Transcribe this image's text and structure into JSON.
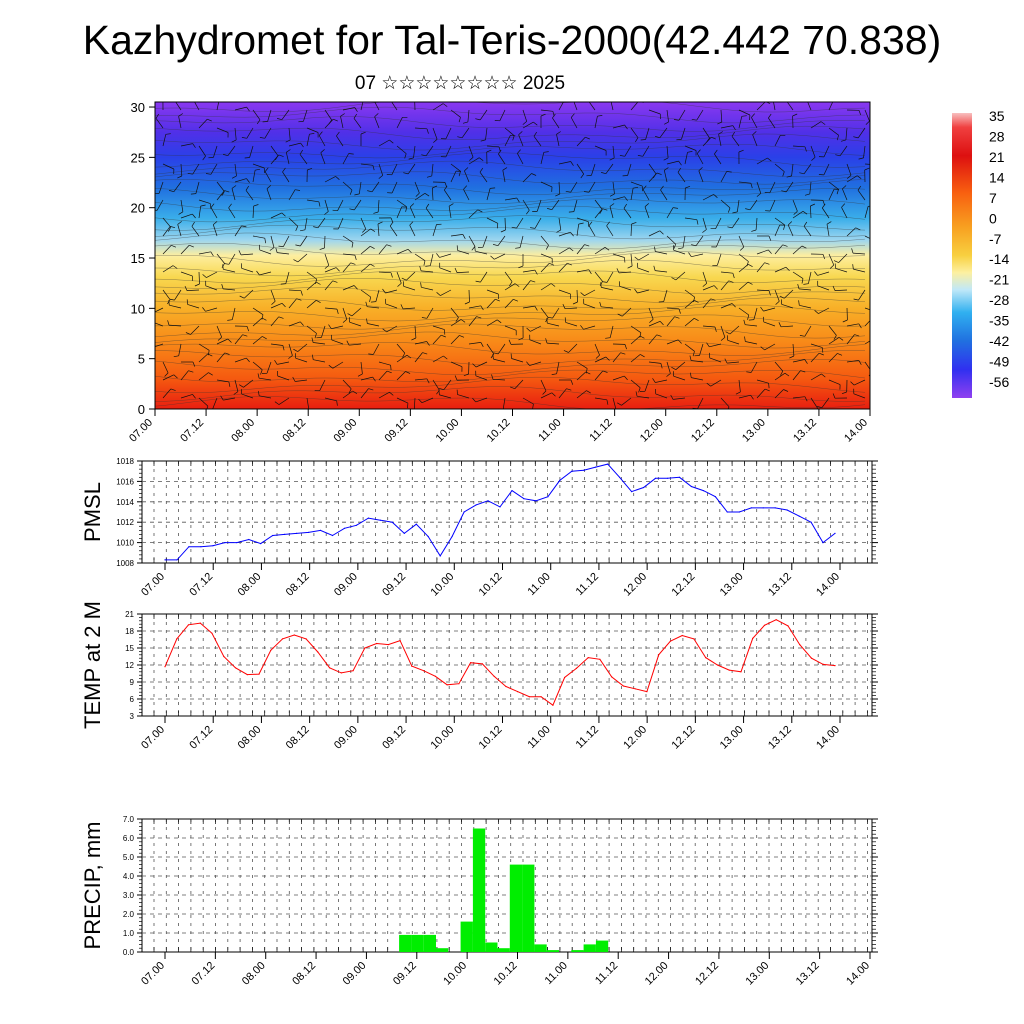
{
  "title": "Kazhydromet for Tal-Teris-2000(42.442 70.838)",
  "subtitle": "07 ☆☆☆☆☆☆☆☆ 2025",
  "colors": {
    "pmsl_line": "#0000ff",
    "temp_line": "#ff0000",
    "precip_bar": "#00ee00",
    "grid": "#555555"
  },
  "chart_data": [
    {
      "type": "heatmap",
      "title": "",
      "xlabel": "",
      "ylabel": "",
      "x_tick_labels": [
        "07.00",
        "07.12",
        "08.00",
        "08.12",
        "09.00",
        "09.12",
        "10.00",
        "10.12",
        "11.00",
        "11.12",
        "12.00",
        "12.12",
        "13.00",
        "13.12",
        "14.00"
      ],
      "y_ticks": [
        0,
        5,
        10,
        15,
        20,
        25,
        30
      ],
      "ylim": [
        0,
        30.5
      ],
      "colorbar_labels": [
        "35",
        "28",
        "21",
        "14",
        "7",
        "0",
        "-7",
        "-14",
        "-21",
        "-28",
        "-35",
        "-42",
        "-49",
        "-56"
      ],
      "value_range": [
        -60,
        38
      ],
      "overlay": "wind barbs"
    },
    {
      "type": "line",
      "ylabel": "PMSL",
      "x_tick_labels": [
        "07.00",
        "07.12",
        "08.00",
        "08.12",
        "09.00",
        "09.12",
        "10.00",
        "10.12",
        "11.00",
        "11.12",
        "12.00",
        "12.12",
        "13.00",
        "13.12",
        "14.00"
      ],
      "y_ticks": [
        1008,
        1010,
        1012,
        1014,
        1016,
        1018
      ],
      "ylim": [
        1008,
        1018
      ],
      "grid": true,
      "values": [
        1008.3,
        1008.3,
        1009.6,
        1009.6,
        1009.7,
        1010.0,
        1010.0,
        1010.3,
        1009.9,
        1010.7,
        1010.8,
        1010.9,
        1011.0,
        1011.2,
        1010.7,
        1011.4,
        1011.7,
        1012.4,
        1012.2,
        1012.0,
        1010.9,
        1011.8,
        1010.6,
        1008.7,
        1010.6,
        1013.0,
        1013.7,
        1014.1,
        1013.5,
        1015.1,
        1014.3,
        1014.1,
        1014.5,
        1016.1,
        1017.0,
        1017.1,
        1017.4,
        1017.7,
        1016.4,
        1015.0,
        1015.4,
        1016.3,
        1016.3,
        1016.4,
        1015.5,
        1015.1,
        1014.5,
        1013.0,
        1013.0,
        1013.4,
        1013.4,
        1013.4,
        1013.2,
        1012.6,
        1012.0,
        1010.0,
        1010.9
      ]
    },
    {
      "type": "line",
      "ylabel": "TEMP at 2 M",
      "x_tick_labels": [
        "07.00",
        "07.12",
        "08.00",
        "08.12",
        "09.00",
        "09.12",
        "10.00",
        "10.12",
        "11.00",
        "11.12",
        "12.00",
        "12.12",
        "13.00",
        "13.12",
        "14.00"
      ],
      "y_ticks": [
        3,
        6,
        9,
        12,
        15,
        18,
        21
      ],
      "ylim": [
        3,
        21
      ],
      "grid": true,
      "values": [
        11.7,
        16.6,
        19.1,
        19.4,
        17.6,
        13.5,
        11.5,
        10.3,
        10.4,
        14.6,
        16.6,
        17.3,
        16.6,
        14.3,
        11.5,
        10.6,
        11.0,
        15.0,
        15.8,
        15.6,
        16.3,
        11.8,
        11.0,
        10.0,
        8.5,
        8.7,
        12.4,
        12.2,
        10.0,
        8.2,
        7.3,
        6.4,
        6.4,
        4.9,
        9.8,
        11.4,
        13.3,
        13.0,
        9.9,
        8.3,
        7.8,
        7.3,
        13.8,
        16.2,
        17.2,
        16.6,
        13.3,
        12.0,
        11.1,
        10.8,
        16.7,
        19.0,
        20.0,
        18.9,
        15.6,
        13.2,
        12.1,
        11.9
      ]
    },
    {
      "type": "bar",
      "ylabel": "PRECIP, mm",
      "x_tick_labels": [
        "07.00",
        "07.12",
        "08.00",
        "08.12",
        "09.00",
        "09.12",
        "10.00",
        "10.12",
        "11.00",
        "11.12",
        "12.00",
        "12.12",
        "13.00",
        "13.12",
        "14.00"
      ],
      "y_tick_labels": [
        "0.0",
        "1.0",
        "2.0",
        "3.0",
        "4.0",
        "5.0",
        "6.0",
        "7.0"
      ],
      "ylim": [
        0,
        7
      ],
      "grid": true,
      "values": [
        0,
        0,
        0,
        0,
        0,
        0,
        0,
        0,
        0,
        0,
        0,
        0,
        0,
        0,
        0,
        0,
        0,
        0,
        0,
        0,
        0.9,
        0.9,
        0.9,
        0.2,
        0,
        1.6,
        6.5,
        0.5,
        0.2,
        4.6,
        4.6,
        0.4,
        0.1,
        0,
        0.1,
        0.4,
        0.6,
        0,
        0,
        0,
        0,
        0,
        0,
        0,
        0,
        0,
        0,
        0,
        0,
        0,
        0,
        0,
        0,
        0,
        0,
        0
      ]
    }
  ]
}
